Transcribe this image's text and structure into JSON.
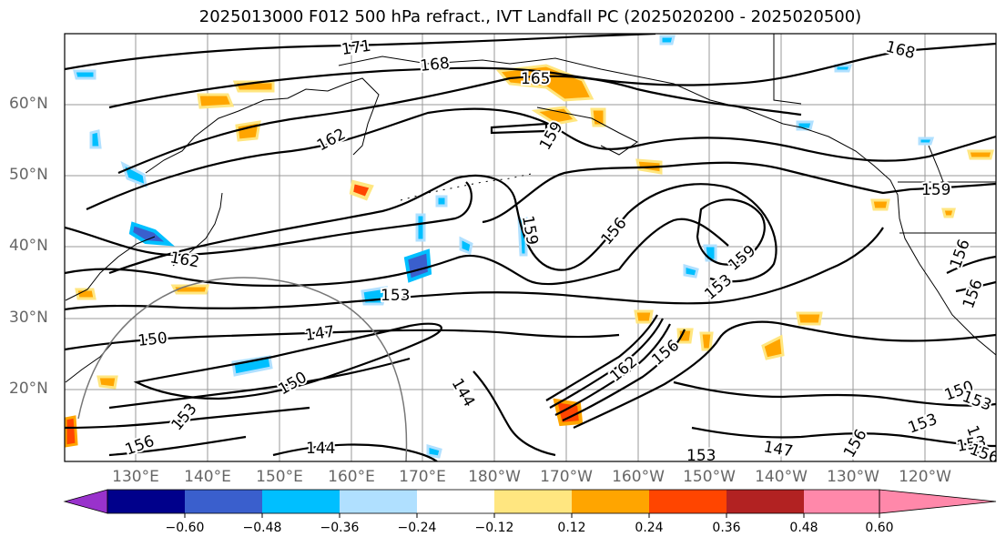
{
  "title": "2025013000 F012 500 hPa refract., IVT Landfall PC (2025020200 - 2025020500)",
  "lat_labels": [
    "60°N",
    "50°N",
    "40°N",
    "30°N",
    "20°N"
  ],
  "lon_labels": [
    "130°E",
    "140°E",
    "150°E",
    "160°E",
    "170°E",
    "180°W",
    "170°W",
    "160°W",
    "150°W",
    "140°W",
    "130°W",
    "120°W"
  ],
  "contour_labels": [
    "171",
    "168",
    "165",
    "168",
    "162",
    "159",
    "162",
    "156",
    "159",
    "159",
    "153",
    "159",
    "153",
    "156",
    "156",
    "150",
    "147",
    "150",
    "144",
    "162",
    "156",
    "153",
    "147",
    "153",
    "144",
    "156",
    "150",
    "153",
    "150",
    "153",
    "156",
    "153",
    "156"
  ],
  "colorbar": {
    "ticks": [
      "−0.60",
      "−0.48",
      "−0.36",
      "−0.24",
      "−0.12",
      "0.12",
      "0.24",
      "0.36",
      "0.48",
      "0.60"
    ],
    "colors": [
      "#9932cc",
      "#00008b",
      "#3a5fcd",
      "#00bfff",
      "#b0e0ff",
      "#ffffff",
      "#ffe680",
      "#ffa500",
      "#ff4500",
      "#b22222",
      "#ff88aa"
    ]
  },
  "colors": {
    "positive_shade": "#ffa500",
    "positive_light": "#ffe680",
    "negative_shade": "#00bfff",
    "negative_light": "#b0e0ff",
    "negative_dark": "#3a5fcd",
    "negative_strong": "#00008b",
    "positive_strong": "#ff4500"
  }
}
